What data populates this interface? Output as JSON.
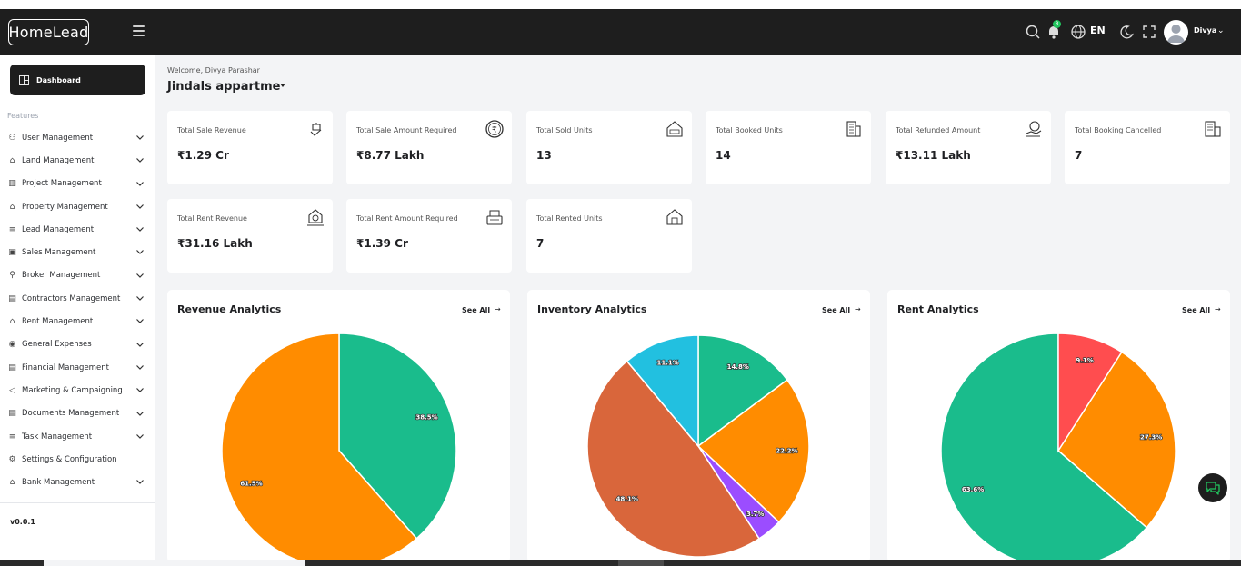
{
  "header": {
    "logo_text": "HomeLead",
    "language": "EN",
    "notification_count": "8",
    "user_name": "Divya"
  },
  "sidebar": {
    "dashboard_label": "Dashboard",
    "section_label": "Features",
    "items": [
      {
        "label": "User Management",
        "icon": "user-icon",
        "has_submenu": true
      },
      {
        "label": "Land Management",
        "icon": "land-icon",
        "has_submenu": true
      },
      {
        "label": "Project Management",
        "icon": "project-icon",
        "has_submenu": true
      },
      {
        "label": "Property Management",
        "icon": "property-icon",
        "has_submenu": true
      },
      {
        "label": "Lead Management",
        "icon": "lead-icon",
        "has_submenu": true
      },
      {
        "label": "Sales Management",
        "icon": "sales-icon",
        "has_submenu": true
      },
      {
        "label": "Broker Management",
        "icon": "broker-icon",
        "has_submenu": true
      },
      {
        "label": "Contractors Management",
        "icon": "contractor-icon",
        "has_submenu": true
      },
      {
        "label": "Rent Management",
        "icon": "rent-icon",
        "has_submenu": true
      },
      {
        "label": "General Expenses",
        "icon": "expenses-icon",
        "has_submenu": true
      },
      {
        "label": "Financial Management",
        "icon": "finance-icon",
        "has_submenu": true
      },
      {
        "label": "Marketing & Campaigning",
        "icon": "marketing-icon",
        "has_submenu": true
      },
      {
        "label": "Documents Management",
        "icon": "documents-icon",
        "has_submenu": true
      },
      {
        "label": "Task Management",
        "icon": "task-icon",
        "has_submenu": true
      },
      {
        "label": "Settings & Configuration",
        "icon": "settings-icon",
        "has_submenu": false
      },
      {
        "label": "Bank Management",
        "icon": "bank-icon",
        "has_submenu": true
      }
    ],
    "version": "v0.0.1"
  },
  "main": {
    "welcome": "Welcome, Divya Parashar",
    "project_name": "Jindals appartme",
    "stats": [
      {
        "label": "Total Sale Revenue",
        "value": "₹1.29 Cr",
        "icon": "sale-revenue-icon"
      },
      {
        "label": "Total Sale Amount Required",
        "value": "₹8.77 Lakh",
        "icon": "rupee-icon"
      },
      {
        "label": "Total Sold Units",
        "value": "13",
        "icon": "sold-house-icon"
      },
      {
        "label": "Total Booked Units",
        "value": "14",
        "icon": "building-icon"
      },
      {
        "label": "Total Refunded Amount",
        "value": "₹13.11 Lakh",
        "icon": "refund-icon"
      },
      {
        "label": "Total Booking Cancelled",
        "value": "7",
        "icon": "cancelled-building-icon"
      },
      {
        "label": "Total Rent Revenue",
        "value": "₹31.16 Lakh",
        "icon": "rent-revenue-icon"
      },
      {
        "label": "Total Rent Amount Required",
        "value": "₹1.39 Cr",
        "icon": "cash-register-icon"
      },
      {
        "label": "Total Rented Units",
        "value": "7",
        "icon": "rented-house-icon"
      }
    ],
    "panels": [
      {
        "title": "Revenue Analytics",
        "link": "See All"
      },
      {
        "title": "Inventory Analytics",
        "link": "See All"
      },
      {
        "title": "Rent Analytics",
        "link": "See All"
      }
    ]
  },
  "chart_data": [
    {
      "type": "pie",
      "title": "Revenue Analytics",
      "slices": [
        {
          "label": "38.5%",
          "value": 38.5,
          "color": "#1abc8c"
        },
        {
          "label": "61.5%",
          "value": 61.5,
          "color": "#ff8c00"
        }
      ]
    },
    {
      "type": "pie",
      "title": "Inventory Analytics",
      "slices": [
        {
          "label": "14.8%",
          "value": 14.8,
          "color": "#1abc8c"
        },
        {
          "label": "22.2%",
          "value": 22.2,
          "color": "#ff8c00"
        },
        {
          "label": "3.7%",
          "value": 3.7,
          "color": "#9b4dff"
        },
        {
          "label": "48.1%",
          "value": 48.1,
          "color": "#d9663b"
        },
        {
          "label": "11.1%",
          "value": 11.1,
          "color": "#22c0e0"
        }
      ]
    },
    {
      "type": "pie",
      "title": "Rent Analytics",
      "slices": [
        {
          "label": "63.6%",
          "value": 63.6,
          "color": "#1abc8c"
        },
        {
          "label": "27.3%",
          "value": 27.3,
          "color": "#ff8c00"
        },
        {
          "label": "9.1%",
          "value": 9.1,
          "color": "#ff4d4f"
        }
      ]
    }
  ]
}
